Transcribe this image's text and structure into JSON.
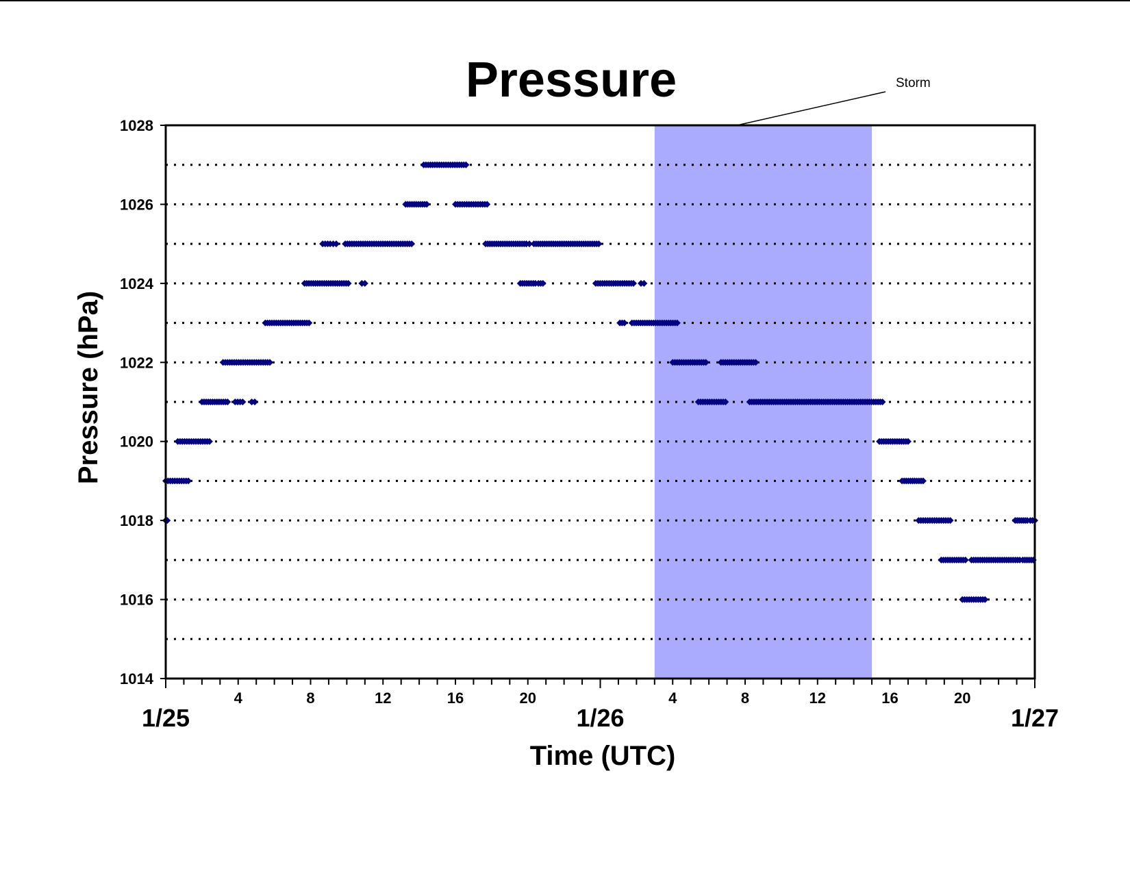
{
  "chart_data": {
    "type": "scatter",
    "title": "Pressure",
    "xlabel": "Time (UTC)",
    "ylabel": "Pressure (hPa)",
    "ylim": [
      1014,
      1028
    ],
    "xlim": [
      "1/25 00:00",
      "1/27 00:00"
    ],
    "grid": true,
    "x_hour_ticks": [
      "4",
      "8",
      "12",
      "16",
      "20",
      "4",
      "8",
      "12",
      "16",
      "20"
    ],
    "x_date_ticks": [
      "1/25",
      "1/26",
      "1/27"
    ],
    "y_ticks": [
      "1014",
      "1016",
      "1018",
      "1020",
      "1022",
      "1024",
      "1026",
      "1028"
    ],
    "annotation": {
      "label": "Storm",
      "start": "1/26 03:00",
      "end": "1/26 15:00",
      "color": "#aaaaff"
    },
    "series_color": "#000080",
    "series": [
      {
        "segments": [
          {
            "y": 1018,
            "from": "1/25 00:00",
            "to": "1/25 00:05"
          },
          {
            "y": 1019,
            "from": "1/25 00:00",
            "to": "1/25 01:15"
          },
          {
            "y": 1020,
            "from": "1/25 00:40",
            "to": "1/25 02:25"
          },
          {
            "y": 1021,
            "from": "1/25 02:00",
            "to": "1/25 03:25"
          },
          {
            "y": 1021,
            "from": "1/25 03:50",
            "to": "1/25 04:15"
          },
          {
            "y": 1021,
            "from": "1/25 04:45",
            "to": "1/25 04:55"
          },
          {
            "y": 1022,
            "from": "1/25 03:10",
            "to": "1/25 05:45"
          },
          {
            "y": 1023,
            "from": "1/25 05:30",
            "to": "1/25 07:55"
          },
          {
            "y": 1024,
            "from": "1/25 07:40",
            "to": "1/25 10:05"
          },
          {
            "y": 1024,
            "from": "1/25 10:50",
            "to": "1/25 11:00"
          },
          {
            "y": 1025,
            "from": "1/25 08:40",
            "to": "1/25 09:05"
          },
          {
            "y": 1025,
            "from": "1/25 09:15",
            "to": "1/25 09:25"
          },
          {
            "y": 1025,
            "from": "1/25 09:55",
            "to": "1/25 13:35"
          },
          {
            "y": 1026,
            "from": "1/25 13:15",
            "to": "1/25 14:25"
          },
          {
            "y": 1026,
            "from": "1/25 16:00",
            "to": "1/25 17:45"
          },
          {
            "y": 1027,
            "from": "1/25 14:15",
            "to": "1/25 16:35"
          },
          {
            "y": 1025,
            "from": "1/25 17:40",
            "to": "1/25 19:55"
          },
          {
            "y": 1025,
            "from": "1/25 19:55",
            "to": "1/25 20:05"
          },
          {
            "y": 1025,
            "from": "1/25 20:20",
            "to": "1/25 23:55"
          },
          {
            "y": 1024,
            "from": "1/25 19:35",
            "to": "1/25 20:25"
          },
          {
            "y": 1024,
            "from": "1/25 20:35",
            "to": "1/25 20:50"
          },
          {
            "y": 1024,
            "from": "1/25 23:45",
            "to": "1/26 01:50"
          },
          {
            "y": 1024,
            "from": "1/26 02:15",
            "to": "1/26 02:25"
          },
          {
            "y": 1023,
            "from": "1/26 01:05",
            "to": "1/26 01:20"
          },
          {
            "y": 1023,
            "from": "1/26 01:45",
            "to": "1/26 04:15"
          },
          {
            "y": 1022,
            "from": "1/26 04:00",
            "to": "1/26 05:50"
          },
          {
            "y": 1022,
            "from": "1/26 06:40",
            "to": "1/26 08:35"
          },
          {
            "y": 1021,
            "from": "1/26 05:25",
            "to": "1/26 06:55"
          },
          {
            "y": 1021,
            "from": "1/26 08:15",
            "to": "1/26 15:35"
          },
          {
            "y": 1020,
            "from": "1/26 15:25",
            "to": "1/26 17:00"
          },
          {
            "y": 1019,
            "from": "1/26 16:40",
            "to": "1/26 17:50"
          },
          {
            "y": 1018,
            "from": "1/26 17:35",
            "to": "1/26 19:20"
          },
          {
            "y": 1018,
            "from": "1/26 22:55",
            "to": "1/26 23:35"
          },
          {
            "y": 1018,
            "from": "1/26 23:45",
            "to": "1/27 00:00"
          },
          {
            "y": 1017,
            "from": "1/26 18:50",
            "to": "1/26 20:10"
          },
          {
            "y": 1017,
            "from": "1/26 20:30",
            "to": "1/26 23:10"
          },
          {
            "y": 1017,
            "from": "1/26 23:20",
            "to": "1/26 23:55"
          },
          {
            "y": 1016,
            "from": "1/26 20:00",
            "to": "1/26 21:15"
          }
        ]
      }
    ]
  }
}
